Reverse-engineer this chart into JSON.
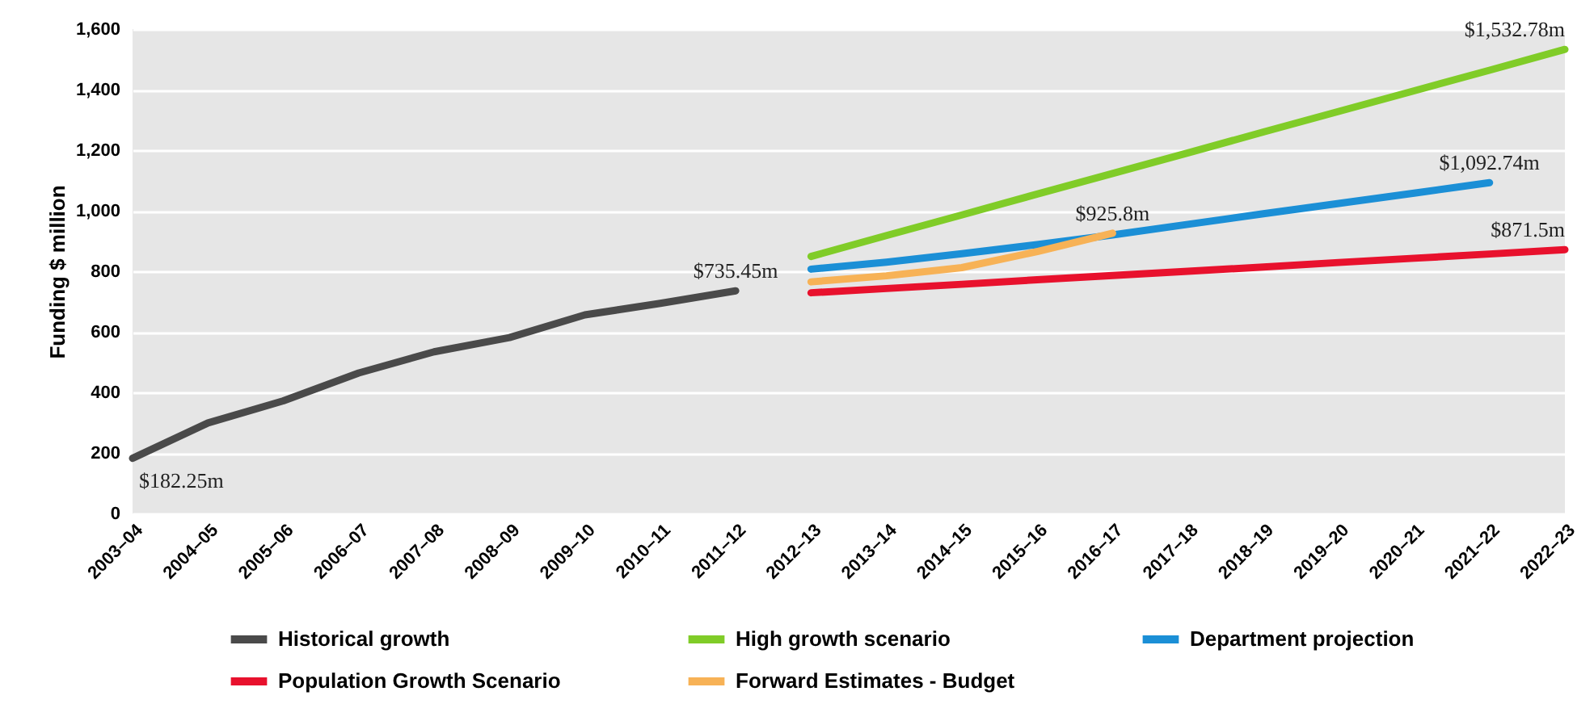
{
  "chart_data": {
    "type": "line",
    "ylabel": "Funding $ million",
    "categories": [
      "2003–04",
      "2004–05",
      "2005–06",
      "2006–07",
      "2007–08",
      "2008–09",
      "2009–10",
      "2010–11",
      "2011–12",
      "2012–13",
      "2013–14",
      "2014–15",
      "2015–16",
      "2016–17",
      "2017–18",
      "2018–19",
      "2019–20",
      "2020–21",
      "2021–22",
      "2022–23"
    ],
    "ylim": [
      0,
      1600
    ],
    "yticks": [
      0,
      200,
      400,
      600,
      800,
      {
        "value": 1000,
        "label": "1,000"
      },
      {
        "value": 1200,
        "label": "1,200"
      },
      {
        "value": 1400,
        "label": "1,400"
      },
      {
        "value": 1600,
        "label": "1,600"
      }
    ],
    "grid": "y",
    "legend": "bottom",
    "line_style": "solid",
    "series": [
      {
        "name": "Historical growth",
        "color": "#4a4a4a",
        "values": [
          182.25,
          299,
          372,
          464,
          534,
          581,
          656,
          694,
          735.45,
          null,
          null,
          null,
          null,
          null,
          null,
          null,
          null,
          null,
          null,
          null
        ],
        "value_labels": [
          "$182.25m",
          null,
          null,
          null,
          null,
          null,
          null,
          null,
          "$735.45m",
          null,
          null,
          null,
          null,
          null,
          null,
          null,
          null,
          null,
          null,
          null
        ]
      },
      {
        "name": "High growth scenario",
        "color": "#80cc28",
        "values": [
          null,
          null,
          null,
          null,
          null,
          null,
          null,
          null,
          null,
          849,
          918,
          986,
          1055,
          1123,
          1191,
          1260,
          1328,
          1396,
          1464,
          1532.78
        ],
        "value_labels": [
          null,
          null,
          null,
          null,
          null,
          null,
          null,
          null,
          null,
          null,
          null,
          null,
          null,
          null,
          null,
          null,
          null,
          null,
          null,
          "$1,532.78m"
        ]
      },
      {
        "name": "Department projection",
        "color": "#1b8fd6",
        "values": [
          null,
          null,
          null,
          null,
          null,
          null,
          null,
          null,
          null,
          807,
          830,
          858,
          888,
          920,
          955,
          990,
          1024,
          1058,
          1092.74,
          null
        ],
        "value_labels": [
          null,
          null,
          null,
          null,
          null,
          null,
          null,
          null,
          null,
          null,
          null,
          null,
          null,
          null,
          null,
          null,
          null,
          null,
          "$1,092.74m",
          null
        ]
      },
      {
        "name": "Population Growth Scenario",
        "color": "#e8112d",
        "values": [
          null,
          null,
          null,
          null,
          null,
          null,
          null,
          null,
          null,
          729,
          743,
          757,
          772,
          786,
          800,
          814,
          829,
          843,
          857,
          871.5
        ],
        "value_labels": [
          null,
          null,
          null,
          null,
          null,
          null,
          null,
          null,
          null,
          null,
          null,
          null,
          null,
          null,
          null,
          null,
          null,
          null,
          null,
          "$871.5m"
        ]
      },
      {
        "name": "Forward Estimates - Budget",
        "color": "#f7b256",
        "values": [
          null,
          null,
          null,
          null,
          null,
          null,
          null,
          null,
          null,
          765,
          785,
          812,
          865,
          925.8,
          null,
          null,
          null,
          null,
          null,
          null
        ],
        "value_labels": [
          null,
          null,
          null,
          null,
          null,
          null,
          null,
          null,
          null,
          null,
          null,
          null,
          null,
          "$925.8m",
          null,
          null,
          null,
          null,
          null,
          null
        ]
      }
    ]
  }
}
